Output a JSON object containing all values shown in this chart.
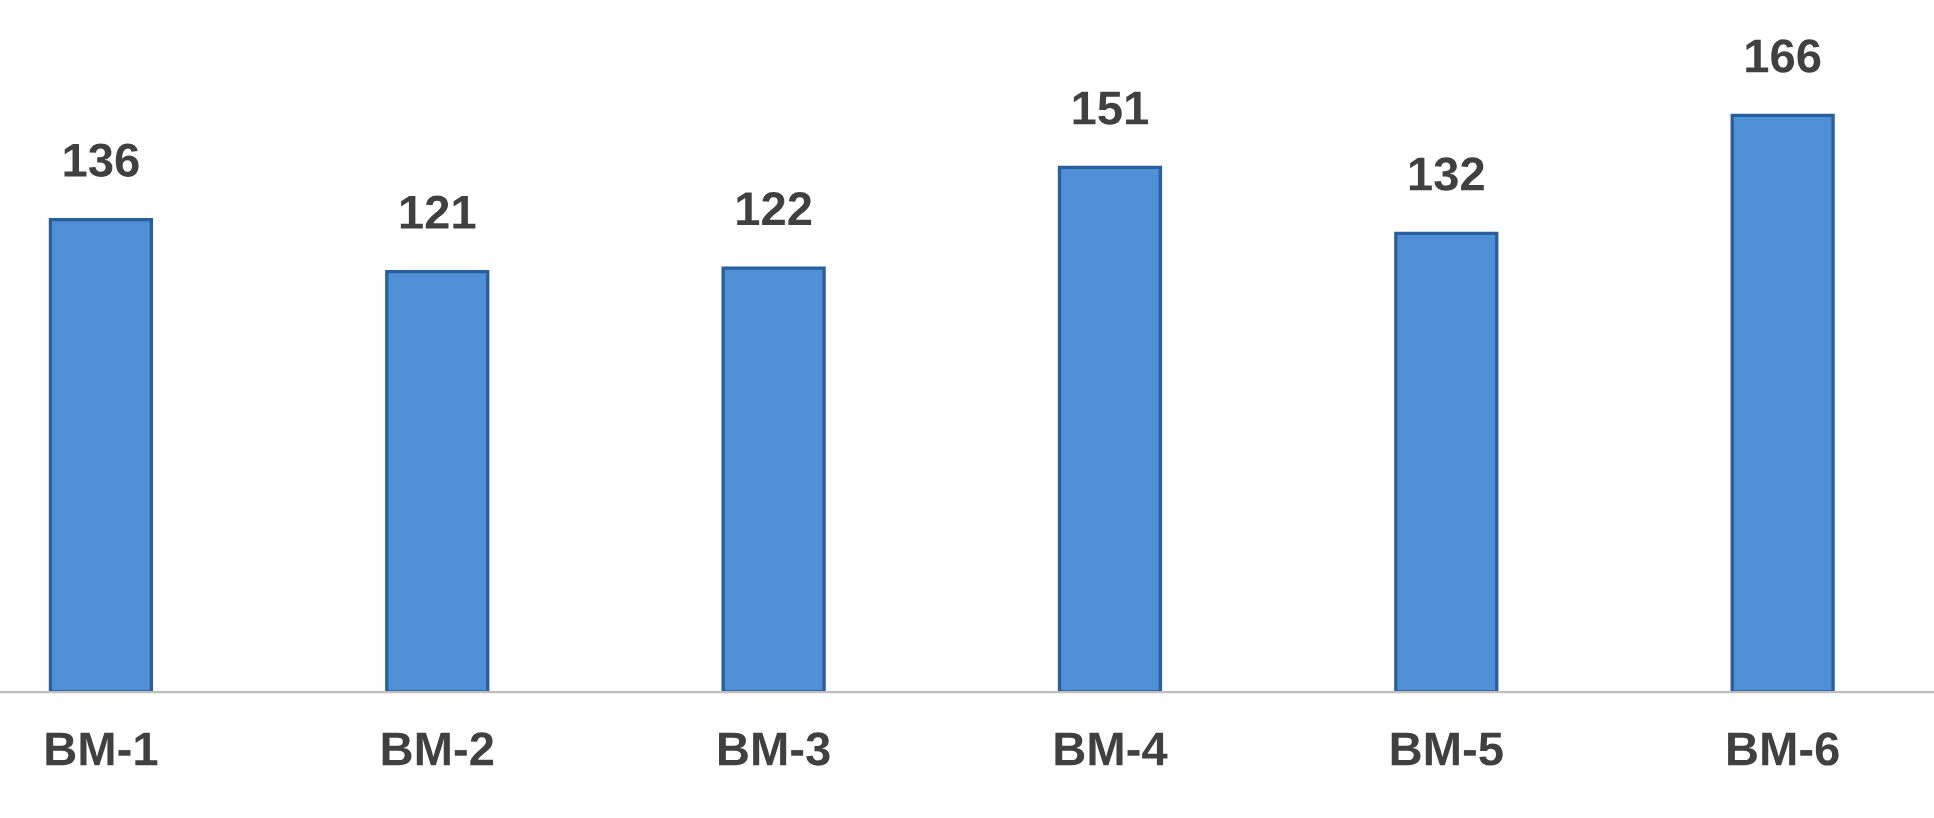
{
  "chart_data": {
    "type": "bar",
    "categories": [
      "BM-1",
      "BM-2",
      "BM-3",
      "BM-4",
      "BM-5",
      "BM-6"
    ],
    "values": [
      136,
      121,
      122,
      151,
      132,
      166
    ],
    "color": "#4f8fd6",
    "data_labels": true,
    "grid": false,
    "legend": false
  }
}
